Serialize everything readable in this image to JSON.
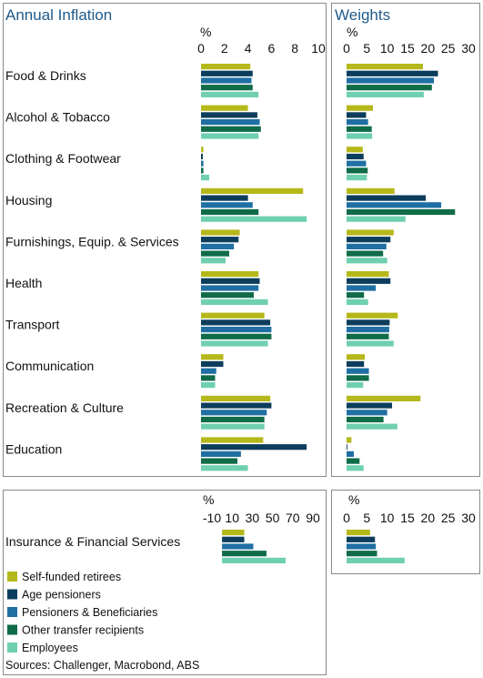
{
  "colors": {
    "series": [
      "#b5b81a",
      "#0d3d5c",
      "#1f6fa3",
      "#0f6b48",
      "#6fcfb1"
    ],
    "border": "#8a8a8a",
    "title": "#1f5a8a"
  },
  "legend": {
    "items": [
      "Self-funded retirees",
      "Age pensioners",
      "Pensioners & Beneficiaries",
      "Other transfer recipients",
      "Employees"
    ]
  },
  "sources": "Sources: Challenger, Macrobond, ABS",
  "chart_data": [
    {
      "type": "bar",
      "orientation": "horizontal",
      "title": "Annual Inflation",
      "xlabel": "%",
      "xlim": [
        0,
        10
      ],
      "xticks": [
        0,
        2,
        4,
        6,
        8,
        10
      ],
      "categories": [
        "Food & Drinks",
        "Alcohol & Tobacco",
        "Clothing & Footwear",
        "Housing",
        "Furnishings, Equip. & Services",
        "Health",
        "Transport",
        "Communication",
        "Recreation & Culture",
        "Education"
      ],
      "series": [
        {
          "name": "Self-funded retirees",
          "values": [
            4.2,
            4.0,
            0.2,
            8.7,
            3.3,
            4.9,
            5.4,
            1.9,
            5.9,
            5.3
          ]
        },
        {
          "name": "Age pensioners",
          "values": [
            4.4,
            4.8,
            0.15,
            4.0,
            3.2,
            5.0,
            5.9,
            1.9,
            6.0,
            9.0
          ]
        },
        {
          "name": "Pensioners & Beneficiaries",
          "values": [
            4.3,
            5.0,
            0.2,
            4.4,
            2.8,
            4.9,
            6.0,
            1.3,
            5.6,
            3.4
          ]
        },
        {
          "name": "Other transfer recipients",
          "values": [
            4.4,
            5.1,
            0.2,
            4.9,
            2.4,
            4.5,
            6.0,
            1.2,
            5.4,
            3.1
          ]
        },
        {
          "name": "Employees",
          "values": [
            4.9,
            4.9,
            0.7,
            9.0,
            2.1,
            5.7,
            5.7,
            1.2,
            5.4,
            4.0
          ]
        }
      ]
    },
    {
      "type": "bar",
      "orientation": "horizontal",
      "title": "Weights",
      "xlabel": "%",
      "xlim": [
        0,
        30
      ],
      "xticks": [
        0,
        5,
        10,
        15,
        20,
        25,
        30
      ],
      "categories": [
        "Food & Drinks",
        "Alcohol & Tobacco",
        "Clothing & Footwear",
        "Housing",
        "Furnishings, Equip. & Services",
        "Health",
        "Transport",
        "Communication",
        "Recreation & Culture",
        "Education"
      ],
      "series": [
        {
          "name": "Self-funded retirees",
          "values": [
            18.8,
            6.5,
            4.0,
            11.8,
            11.6,
            10.4,
            12.6,
            4.5,
            18.2,
            1.2
          ]
        },
        {
          "name": "Age pensioners",
          "values": [
            22.5,
            4.8,
            4.2,
            19.5,
            10.8,
            10.8,
            10.6,
            4.3,
            11.2,
            0.2
          ]
        },
        {
          "name": "Pensioners & Beneficiaries",
          "values": [
            21.5,
            5.3,
            4.8,
            23.3,
            9.8,
            7.2,
            10.5,
            5.5,
            10.0,
            1.8
          ]
        },
        {
          "name": "Other transfer recipients",
          "values": [
            21.0,
            6.2,
            5.2,
            26.7,
            9.0,
            4.3,
            10.4,
            5.5,
            9.1,
            3.2
          ]
        },
        {
          "name": "Employees",
          "values": [
            19.0,
            6.3,
            5.0,
            14.5,
            10.0,
            5.3,
            11.6,
            4.1,
            12.5,
            4.2
          ]
        }
      ]
    },
    {
      "type": "bar",
      "orientation": "horizontal",
      "title": "",
      "xlabel": "%",
      "xlim": [
        -10,
        90
      ],
      "xticks": [
        -10,
        10,
        30,
        50,
        70,
        90
      ],
      "categories": [
        "Insurance & Financial Services"
      ],
      "series": [
        {
          "name": "Self-funded retirees",
          "values": [
            22
          ]
        },
        {
          "name": "Age pensioners",
          "values": [
            22
          ]
        },
        {
          "name": "Pensioners & Beneficiaries",
          "values": [
            31
          ]
        },
        {
          "name": "Other transfer recipients",
          "values": [
            44
          ]
        },
        {
          "name": "Employees",
          "values": [
            63
          ]
        }
      ]
    },
    {
      "type": "bar",
      "orientation": "horizontal",
      "title": "",
      "xlabel": "%",
      "xlim": [
        0,
        30
      ],
      "xticks": [
        0,
        5,
        10,
        15,
        20,
        25,
        30
      ],
      "categories": [
        "Insurance & Financial Services"
      ],
      "series": [
        {
          "name": "Self-funded retirees",
          "values": [
            5.8
          ]
        },
        {
          "name": "Age pensioners",
          "values": [
            7.0
          ]
        },
        {
          "name": "Pensioners & Beneficiaries",
          "values": [
            7.2
          ]
        },
        {
          "name": "Other transfer recipients",
          "values": [
            7.5
          ]
        },
        {
          "name": "Employees",
          "values": [
            14.3
          ]
        }
      ]
    }
  ]
}
